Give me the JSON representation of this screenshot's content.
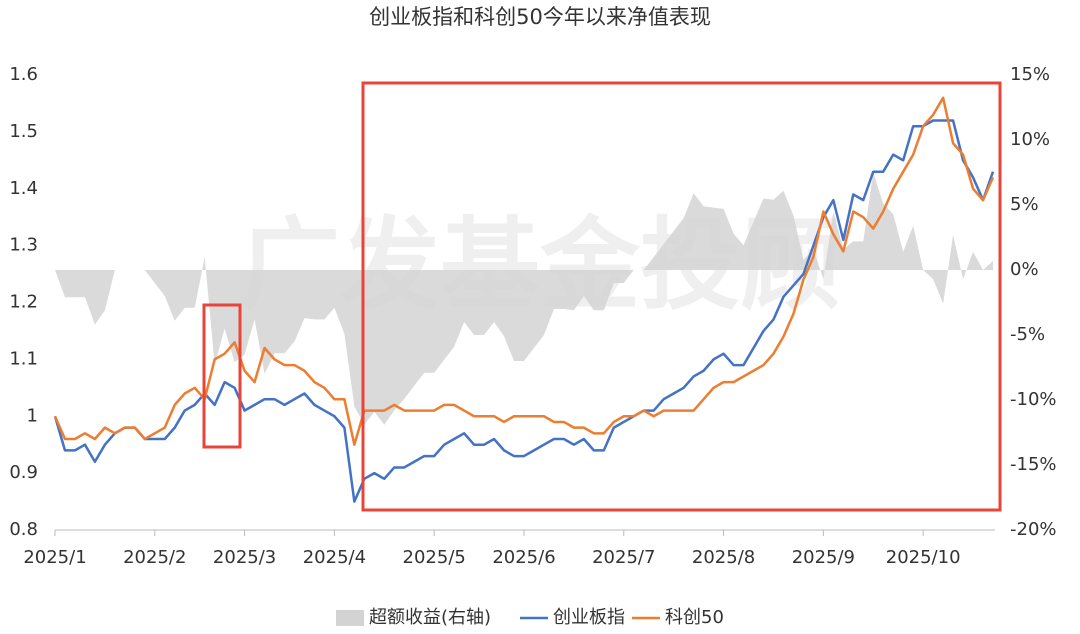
{
  "chart_data": {
    "type": "line",
    "title": "创业板指和科创50今年以来净值表现",
    "watermark": "广发基金投顾",
    "categories": [
      "2025/1",
      null,
      null,
      null,
      null,
      null,
      null,
      null,
      null,
      null,
      "2025/2",
      null,
      null,
      null,
      null,
      null,
      null,
      null,
      null,
      "2025/3",
      null,
      null,
      null,
      null,
      null,
      null,
      null,
      null,
      "2025/4",
      null,
      null,
      null,
      null,
      null,
      null,
      null,
      null,
      null,
      "2025/5",
      null,
      null,
      null,
      null,
      null,
      null,
      null,
      null,
      "2025/6",
      null,
      null,
      null,
      null,
      null,
      null,
      null,
      null,
      null,
      "2025/7",
      null,
      null,
      null,
      null,
      null,
      null,
      null,
      null,
      null,
      "2025/8",
      null,
      null,
      null,
      null,
      null,
      null,
      null,
      null,
      null,
      "2025/9",
      null,
      null,
      null,
      null,
      null,
      null,
      null,
      null,
      null,
      "2025/10",
      null,
      null,
      null,
      null,
      null,
      null,
      null
    ],
    "series": [
      {
        "name": "超额收益(右轴)",
        "type": "area",
        "axis": "y2",
        "color": "#d3d3d3",
        "values": [
          0,
          -2.1,
          -2.1,
          -2.1,
          -4.2,
          -3.1,
          0,
          0,
          0,
          0,
          -1.0,
          -2.0,
          -3.9,
          -2.9,
          -2.9,
          1.0,
          -7.3,
          -4.5,
          -7.1,
          -6.5,
          -3.8,
          -8.0,
          -6.4,
          -6.4,
          -5.5,
          -3.7,
          -3.8,
          -3.8,
          -2.9,
          -4.9,
          -10.5,
          -11.9,
          -10.9,
          -11.9,
          -10.8,
          -9.9,
          -8.9,
          -7.9,
          -7.9,
          -6.9,
          -5.9,
          -4.0,
          -5.0,
          -5.0,
          -4.0,
          -5.1,
          -7.0,
          -7.0,
          -6.0,
          -5.0,
          -3.0,
          -3.0,
          -3.1,
          -2.0,
          -3.1,
          -3.1,
          -1.0,
          -1.0,
          0,
          0,
          1.0,
          2.0,
          3.0,
          4.0,
          5.9,
          4.9,
          4.8,
          4.7,
          2.8,
          1.9,
          3.7,
          5.5,
          5.4,
          6.1,
          4.2,
          0.8,
          1.6,
          -0.7,
          4.5,
          1.6,
          2.2,
          2.2,
          7.5,
          5.1,
          4.3,
          1.4,
          3.4,
          0,
          -0.7,
          -2.6,
          2.7,
          -0.7,
          1.4,
          0,
          0.7
        ]
      },
      {
        "name": "创业板指",
        "color": "#4472c4",
        "values": [
          1.0,
          0.94,
          0.94,
          0.95,
          0.92,
          0.95,
          0.97,
          0.98,
          0.98,
          0.96,
          0.96,
          0.96,
          0.98,
          1.01,
          1.02,
          1.04,
          1.02,
          1.06,
          1.05,
          1.01,
          1.02,
          1.03,
          1.03,
          1.02,
          1.03,
          1.04,
          1.02,
          1.01,
          1.0,
          0.98,
          0.85,
          0.89,
          0.9,
          0.89,
          0.91,
          0.91,
          0.92,
          0.93,
          0.93,
          0.95,
          0.96,
          0.97,
          0.95,
          0.95,
          0.96,
          0.94,
          0.93,
          0.93,
          0.94,
          0.95,
          0.96,
          0.96,
          0.95,
          0.96,
          0.94,
          0.94,
          0.98,
          0.99,
          1.0,
          1.01,
          1.01,
          1.03,
          1.04,
          1.05,
          1.07,
          1.08,
          1.1,
          1.11,
          1.09,
          1.09,
          1.12,
          1.15,
          1.17,
          1.21,
          1.23,
          1.25,
          1.3,
          1.35,
          1.38,
          1.31,
          1.39,
          1.38,
          1.43,
          1.43,
          1.46,
          1.45,
          1.51,
          1.51,
          1.52,
          1.52,
          1.52,
          1.45,
          1.42,
          1.38,
          1.43
        ]
      },
      {
        "name": "科创50",
        "color": "#ed7d31",
        "values": [
          1.0,
          0.96,
          0.96,
          0.97,
          0.96,
          0.98,
          0.97,
          0.98,
          0.98,
          0.96,
          0.97,
          0.98,
          1.02,
          1.04,
          1.05,
          1.03,
          1.1,
          1.11,
          1.13,
          1.08,
          1.06,
          1.12,
          1.1,
          1.09,
          1.09,
          1.08,
          1.06,
          1.05,
          1.03,
          1.03,
          0.95,
          1.01,
          1.01,
          1.01,
          1.02,
          1.01,
          1.01,
          1.01,
          1.01,
          1.02,
          1.02,
          1.01,
          1.0,
          1.0,
          1.0,
          0.99,
          1.0,
          1.0,
          1.0,
          1.0,
          0.99,
          0.99,
          0.98,
          0.98,
          0.97,
          0.97,
          0.99,
          1.0,
          1.0,
          1.01,
          1.0,
          1.01,
          1.01,
          1.01,
          1.01,
          1.03,
          1.05,
          1.06,
          1.06,
          1.07,
          1.08,
          1.09,
          1.11,
          1.14,
          1.18,
          1.24,
          1.28,
          1.36,
          1.32,
          1.29,
          1.36,
          1.35,
          1.33,
          1.36,
          1.4,
          1.43,
          1.46,
          1.51,
          1.53,
          1.56,
          1.48,
          1.46,
          1.4,
          1.38,
          1.42
        ]
      }
    ],
    "ylim": [
      0.8,
      1.6
    ],
    "yticks": [
      0.8,
      0.9,
      1,
      1.1,
      1.2,
      1.3,
      1.4,
      1.5,
      1.6
    ],
    "y2lim": [
      -20,
      15
    ],
    "y2ticks": [
      {
        "value": -20,
        "label": "-20%"
      },
      {
        "value": -15,
        "label": "-15%"
      },
      {
        "value": -10,
        "label": "-10%"
      },
      {
        "value": -5,
        "label": "-5%"
      },
      {
        "value": 0,
        "label": "0%"
      },
      {
        "value": 5,
        "label": "5%"
      },
      {
        "value": 10,
        "label": "10%"
      },
      {
        "value": 15,
        "label": "15%"
      }
    ],
    "grid": false,
    "legend": "bottom"
  }
}
